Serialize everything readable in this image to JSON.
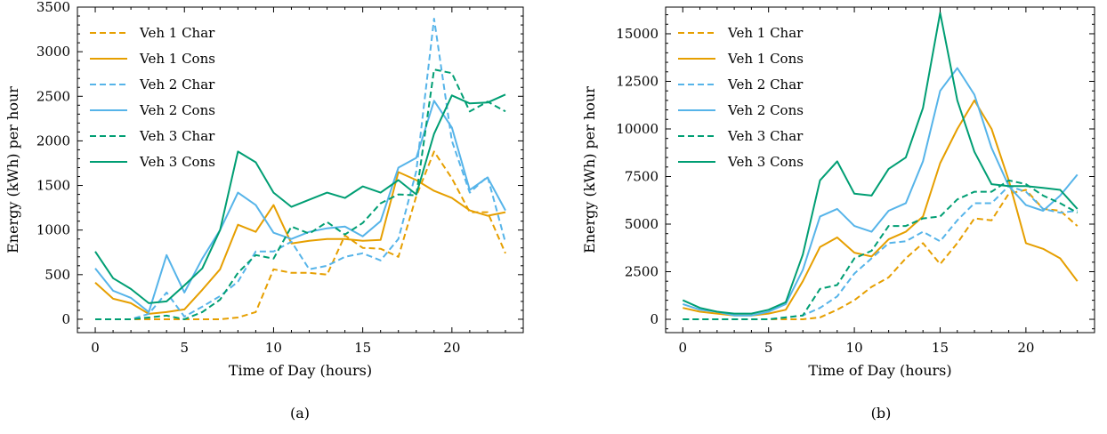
{
  "chart_data": [
    {
      "type": "line",
      "panel_label": "(a)",
      "title": "",
      "xlabel": "Time of Day (hours)",
      "ylabel": "Energy (kWh) per hour",
      "xlim": [
        -1,
        24
      ],
      "ylim": [
        -150,
        3500
      ],
      "xticks": [
        0,
        5,
        10,
        15,
        20
      ],
      "yticks": [
        0,
        500,
        1000,
        1500,
        2000,
        2500,
        3000,
        3500
      ],
      "grid": false,
      "legend_position": "top-left",
      "x": [
        0,
        1,
        2,
        3,
        4,
        5,
        6,
        7,
        8,
        9,
        10,
        11,
        12,
        13,
        14,
        15,
        16,
        17,
        18,
        19,
        20,
        21,
        22,
        23
      ],
      "series": [
        {
          "name": "Veh 1 Char",
          "color": "#E69F00",
          "dash": "dashed",
          "values": [
            0,
            0,
            0,
            0,
            0,
            0,
            0,
            0,
            20,
            80,
            560,
            520,
            520,
            500,
            940,
            800,
            790,
            700,
            1380,
            1880,
            1580,
            1200,
            1200,
            740
          ]
        },
        {
          "name": "Veh 1 Cons",
          "color": "#E69F00",
          "dash": "solid",
          "values": [
            410,
            230,
            180,
            60,
            80,
            110,
            330,
            560,
            1060,
            980,
            1280,
            850,
            880,
            900,
            900,
            880,
            890,
            1650,
            1560,
            1440,
            1360,
            1220,
            1160,
            1200
          ]
        },
        {
          "name": "Veh 2 Char",
          "color": "#56B4E9",
          "dash": "dashed",
          "values": [
            0,
            0,
            0,
            60,
            300,
            30,
            140,
            260,
            420,
            760,
            760,
            870,
            560,
            600,
            700,
            740,
            660,
            900,
            1660,
            3370,
            2000,
            1420,
            1600,
            860
          ]
        },
        {
          "name": "Veh 2 Cons",
          "color": "#56B4E9",
          "dash": "solid",
          "values": [
            570,
            320,
            240,
            80,
            720,
            300,
            680,
            1000,
            1420,
            1280,
            970,
            900,
            980,
            1020,
            1040,
            930,
            1100,
            1700,
            1810,
            2450,
            2150,
            1450,
            1590,
            1220
          ]
        },
        {
          "name": "Veh 3 Char",
          "color": "#009E73",
          "dash": "dashed",
          "values": [
            0,
            0,
            0,
            20,
            40,
            0,
            80,
            220,
            520,
            720,
            680,
            1040,
            960,
            1090,
            950,
            1080,
            1300,
            1400,
            1390,
            2800,
            2760,
            2330,
            2440,
            2330
          ]
        },
        {
          "name": "Veh 3 Cons",
          "color": "#009E73",
          "dash": "solid",
          "values": [
            760,
            460,
            340,
            180,
            200,
            380,
            570,
            1000,
            1880,
            1760,
            1420,
            1260,
            1340,
            1420,
            1360,
            1490,
            1420,
            1560,
            1400,
            2080,
            2510,
            2420,
            2430,
            2520
          ]
        }
      ]
    },
    {
      "type": "line",
      "panel_label": "(b)",
      "title": "",
      "xlabel": "Time of Day (hours)",
      "ylabel": "Energy (kWh) per hour",
      "xlim": [
        -1,
        24
      ],
      "ylim": [
        -700,
        16400
      ],
      "xticks": [
        0,
        5,
        10,
        15,
        20
      ],
      "yticks": [
        0,
        2500,
        5000,
        7500,
        10000,
        12500,
        15000
      ],
      "grid": false,
      "legend_position": "top-left",
      "x": [
        0,
        1,
        2,
        3,
        4,
        5,
        6,
        7,
        8,
        9,
        10,
        11,
        12,
        13,
        14,
        15,
        16,
        17,
        18,
        19,
        20,
        21,
        22,
        23
      ],
      "series": [
        {
          "name": "Veh 1 Char",
          "color": "#E69F00",
          "dash": "dashed",
          "values": [
            0,
            0,
            0,
            0,
            0,
            0,
            0,
            0,
            100,
            500,
            1000,
            1700,
            2200,
            3200,
            4000,
            2900,
            4000,
            5300,
            5200,
            6600,
            6800,
            5800,
            5700,
            4900
          ]
        },
        {
          "name": "Veh 1 Cons",
          "color": "#E69F00",
          "dash": "solid",
          "values": [
            600,
            400,
            300,
            200,
            200,
            300,
            500,
            2000,
            3800,
            4300,
            3500,
            3300,
            4200,
            4600,
            5400,
            8200,
            10000,
            11500,
            10000,
            7300,
            4000,
            3700,
            3200,
            2000
          ]
        },
        {
          "name": "Veh 2 Char",
          "color": "#56B4E9",
          "dash": "dashed",
          "values": [
            0,
            0,
            0,
            0,
            0,
            0,
            100,
            200,
            600,
            1200,
            2400,
            3200,
            4000,
            4100,
            4600,
            4100,
            5200,
            6100,
            6100,
            7000,
            6700,
            5800,
            5600,
            5700
          ]
        },
        {
          "name": "Veh 2 Cons",
          "color": "#56B4E9",
          "dash": "solid",
          "values": [
            800,
            500,
            400,
            200,
            200,
            400,
            800,
            2600,
            5400,
            5800,
            4900,
            4600,
            5700,
            6100,
            8300,
            12000,
            13200,
            11800,
            9000,
            7000,
            6000,
            5700,
            6500,
            7600
          ]
        },
        {
          "name": "Veh 3 Char",
          "color": "#009E73",
          "dash": "dashed",
          "values": [
            0,
            0,
            0,
            0,
            0,
            0,
            100,
            200,
            1600,
            1800,
            3200,
            3600,
            4900,
            4900,
            5300,
            5400,
            6300,
            6700,
            6700,
            7300,
            7100,
            6500,
            6100,
            5600
          ]
        },
        {
          "name": "Veh 3 Cons",
          "color": "#009E73",
          "dash": "solid",
          "values": [
            1000,
            600,
            400,
            300,
            300,
            500,
            900,
            3400,
            7300,
            8300,
            6600,
            6500,
            7900,
            8500,
            11100,
            16100,
            11500,
            8800,
            7100,
            7000,
            7000,
            6900,
            6800,
            5800
          ]
        }
      ]
    }
  ]
}
